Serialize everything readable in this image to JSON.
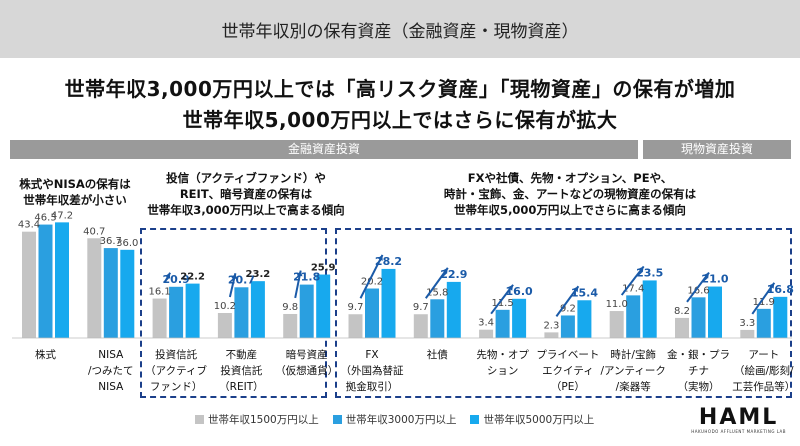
{
  "header": {
    "title": "世帯年収別の保有資産（金融資産・現物資産）"
  },
  "headline": {
    "line1": "世帯年収3,000万円以上では「高リスク資産」「現物資産」の保有が増加",
    "line2": "世帯年収5,000万円以上ではさらに保有が拡大"
  },
  "sections": {
    "financial": "金融資産投資",
    "physical": "現物資産投資"
  },
  "notes": {
    "note1": [
      "株式やNISAの保有は",
      "世帯年収差が小さい"
    ],
    "note2": [
      "投信（アクティブファンド）や",
      "REIT、暗号資産の保有は",
      "世帯年収3,000万円以上で高まる傾向"
    ],
    "note3": [
      "FXや社債、先物・オプション、PEや、",
      "時計・宝飾、金、アートなどの現物資産の保有は",
      "世帯年収5,000万円以上でさらに高まる傾向"
    ]
  },
  "legend": {
    "s1": "世帯年収1500万円以上",
    "s2": "世帯年収3000万円以上",
    "s3": "世帯年収5000万円以上"
  },
  "logo": {
    "text": "HAML",
    "sub": "HAKUHODO AFFLUENT MARKETING LAB"
  },
  "colors": {
    "s1": "#c4c4c4",
    "s2": "#2a9fe0",
    "s3": "#17a9ee",
    "arrow": "#1a5aa8",
    "dash": "#1b3f8a"
  },
  "chart_data": {
    "type": "bar",
    "ylim": [
      0,
      50
    ],
    "categories": [
      [
        "株式"
      ],
      [
        "NISA",
        "/つみたて",
        "NISA"
      ],
      [
        "投資信託",
        "（アクティブ",
        "ファンド）"
      ],
      [
        "不動産",
        "投資信託",
        "（REIT）"
      ],
      [
        "暗号資産",
        "（仮想通貨）"
      ],
      [
        "FX",
        "（外国為替証",
        "拠金取引）"
      ],
      [
        "社債"
      ],
      [
        "先物・オプ",
        "ション"
      ],
      [
        "プライベート",
        "エクイティ",
        "（PE）"
      ],
      [
        "時計/宝飾",
        "/アンティーク",
        "/楽器等"
      ],
      [
        "金・銀・プラ",
        "チナ",
        "（実物）"
      ],
      [
        "アート",
        "（絵画/彫刻/",
        "工芸作品等）"
      ]
    ],
    "series": [
      {
        "name": "世帯年収1500万円以上",
        "values": [
          43.4,
          40.7,
          16.1,
          10.2,
          9.8,
          9.7,
          9.7,
          3.4,
          2.3,
          11.0,
          8.2,
          3.3
        ]
      },
      {
        "name": "世帯年収3000万円以上",
        "values": [
          46.3,
          36.7,
          20.9,
          20.7,
          21.8,
          20.2,
          15.8,
          11.5,
          9.2,
          17.4,
          16.6,
          11.9
        ]
      },
      {
        "name": "世帯年収5000万円以上",
        "values": [
          47.2,
          36.0,
          22.2,
          23.2,
          25.9,
          28.2,
          22.9,
          16.0,
          15.4,
          23.5,
          21.0,
          16.8
        ]
      }
    ],
    "highlight_series": [
      null,
      null,
      "s2",
      "s2",
      "s2",
      "s3",
      "s3",
      "s3",
      "s3",
      "s3",
      "s3",
      "s3"
    ]
  }
}
